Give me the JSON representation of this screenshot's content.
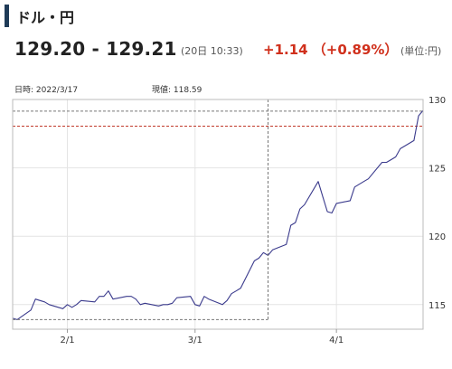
{
  "header": {
    "title": "ドル・円",
    "quote": "129.20 - 129.21",
    "timestamp": "(20日 10:33)",
    "change": "+1.14 （+0.89%）",
    "unit": "(単位:円)"
  },
  "colors": {
    "accent_bar": "#1f3b57",
    "change_up": "#d0301c",
    "line": "#3a3a8c",
    "ref_line_red": "#c0392b",
    "ref_line_gray": "#777777"
  },
  "chart_data": {
    "type": "line",
    "info_date": "日時: 2022/3/17",
    "info_value": "現値: 118.59",
    "x_tick_labels": [
      "2/1",
      "3/1",
      "4/1"
    ],
    "x_tick_dates": [
      "2022-02-01",
      "2022-03-01",
      "2022-04-01"
    ],
    "y_tick_labels": [
      "115",
      "120",
      "125",
      "130"
    ],
    "ylim": [
      113.2,
      130.0
    ],
    "xlim": [
      "2022-01-20",
      "2022-04-20"
    ],
    "grid": true,
    "crosshair": {
      "x": "2022-03-17",
      "y": 113.9
    },
    "reference_lines": [
      {
        "y": 129.15,
        "color": "#777777",
        "style": "dashed"
      },
      {
        "y": 128.05,
        "color": "#c0392b",
        "style": "dashed"
      }
    ],
    "series": [
      {
        "x": [
          "2022-01-20",
          "2022-01-21",
          "2022-01-24",
          "2022-01-25",
          "2022-01-26",
          "2022-01-27",
          "2022-01-28",
          "2022-01-31",
          "2022-02-01",
          "2022-02-02",
          "2022-02-03",
          "2022-02-04",
          "2022-02-07",
          "2022-02-08",
          "2022-02-09",
          "2022-02-10",
          "2022-02-11",
          "2022-02-14",
          "2022-02-15",
          "2022-02-16",
          "2022-02-17",
          "2022-02-18",
          "2022-02-21",
          "2022-02-22",
          "2022-02-23",
          "2022-02-24",
          "2022-02-25",
          "2022-02-28",
          "2022-03-01",
          "2022-03-02",
          "2022-03-03",
          "2022-03-04",
          "2022-03-07",
          "2022-03-08",
          "2022-03-09",
          "2022-03-10",
          "2022-03-11",
          "2022-03-14",
          "2022-03-15",
          "2022-03-16",
          "2022-03-17",
          "2022-03-18",
          "2022-03-21",
          "2022-03-22",
          "2022-03-23",
          "2022-03-24",
          "2022-03-25",
          "2022-03-28",
          "2022-03-29",
          "2022-03-30",
          "2022-03-31",
          "2022-04-01",
          "2022-04-04",
          "2022-04-05",
          "2022-04-06",
          "2022-04-07",
          "2022-04-08",
          "2022-04-11",
          "2022-04-12",
          "2022-04-13",
          "2022-04-14",
          "2022-04-15",
          "2022-04-18",
          "2022-04-19",
          "2022-04-20"
        ],
        "y": [
          114.0,
          113.9,
          114.6,
          115.4,
          115.3,
          115.2,
          115.0,
          114.7,
          115.0,
          114.8,
          115.0,
          115.3,
          115.2,
          115.6,
          115.6,
          116.0,
          115.4,
          115.6,
          115.6,
          115.4,
          115.0,
          115.1,
          114.9,
          115.0,
          115.0,
          115.1,
          115.5,
          115.6,
          115.0,
          114.9,
          115.6,
          115.4,
          115.0,
          115.3,
          115.8,
          116.0,
          116.2,
          118.2,
          118.4,
          118.8,
          118.6,
          119.0,
          119.4,
          120.8,
          121.0,
          122.0,
          122.3,
          124.0,
          122.9,
          121.8,
          121.7,
          122.4,
          122.6,
          123.6,
          123.8,
          124.0,
          124.2,
          125.4,
          125.4,
          125.6,
          125.8,
          126.4,
          127.0,
          128.8,
          129.2
        ]
      }
    ]
  }
}
